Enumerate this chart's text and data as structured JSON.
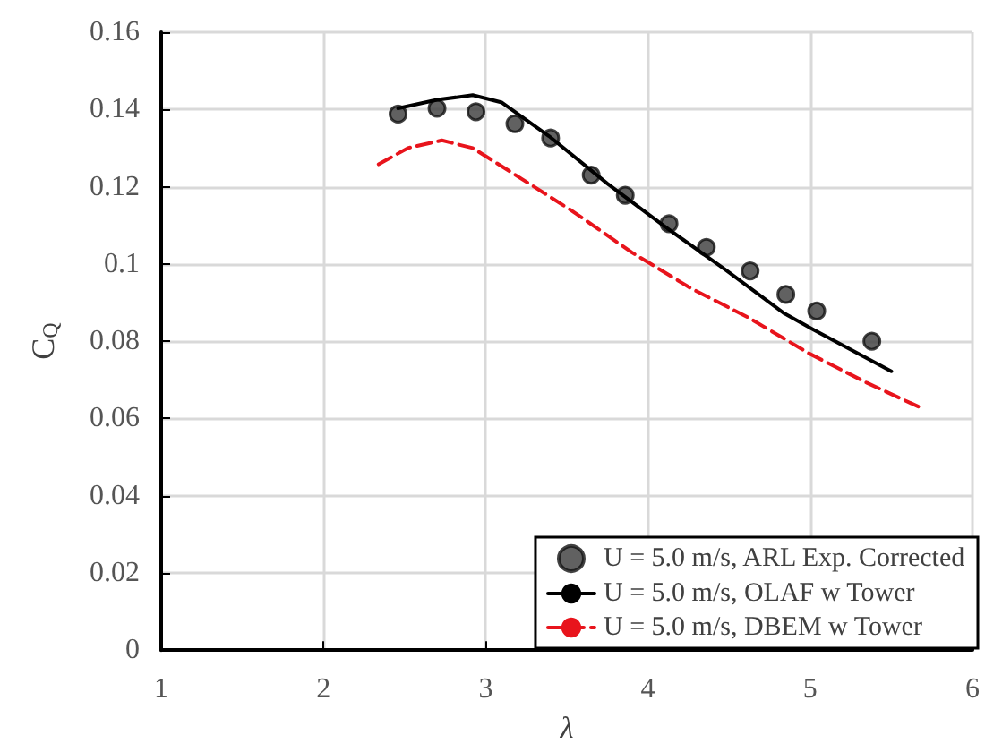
{
  "chart_data": {
    "type": "line",
    "xlabel": "λ",
    "ylabel": "C$_{Q}$",
    "xlim": [
      1,
      6
    ],
    "xticks": [
      1,
      2,
      3,
      4,
      5,
      6
    ],
    "ylim": [
      0,
      0.16
    ],
    "yticks": [
      0,
      0.02,
      0.04,
      0.06,
      0.08,
      0.1,
      0.12,
      0.14,
      0.16
    ],
    "grid": true,
    "legend": "bottom right",
    "series": [
      {
        "name": "U = 5.0 m/s, ARL Exp. Corrected",
        "type": "scatter",
        "marker": "circle",
        "color": "#3a3a3a",
        "x": [
          2.46,
          2.7,
          2.94,
          3.18,
          3.4,
          3.65,
          3.86,
          4.13,
          4.36,
          4.63,
          4.85,
          5.04,
          5.38
        ],
        "values": [
          0.1388,
          0.1403,
          0.1394,
          0.1363,
          0.1326,
          0.123,
          0.1178,
          0.1104,
          0.1043,
          0.0982,
          0.0921,
          0.0878,
          0.08
        ]
      },
      {
        "name": "U = 5.0 m/s, OLAF w Tower",
        "type": "line",
        "line_style": "solid",
        "color": "#000000",
        "x": [
          2.46,
          2.7,
          2.92,
          3.1,
          3.39,
          3.75,
          4.11,
          4.48,
          4.84,
          5.02,
          5.5
        ],
        "values": [
          0.1403,
          0.1425,
          0.1437,
          0.1418,
          0.1331,
          0.1208,
          0.1095,
          0.0984,
          0.0872,
          0.083,
          0.0722
        ]
      },
      {
        "name": "U = 5.0 m/s, DBEM w Tower",
        "type": "line",
        "line_style": "dashed",
        "color": "#e8141c",
        "x": [
          2.34,
          2.52,
          2.73,
          2.92,
          3.17,
          3.53,
          3.9,
          4.26,
          4.62,
          4.99,
          5.35,
          5.69
        ],
        "values": [
          0.1258,
          0.13,
          0.132,
          0.13,
          0.1234,
          0.1138,
          0.103,
          0.0938,
          0.0861,
          0.0769,
          0.0692,
          0.0626
        ]
      }
    ]
  }
}
